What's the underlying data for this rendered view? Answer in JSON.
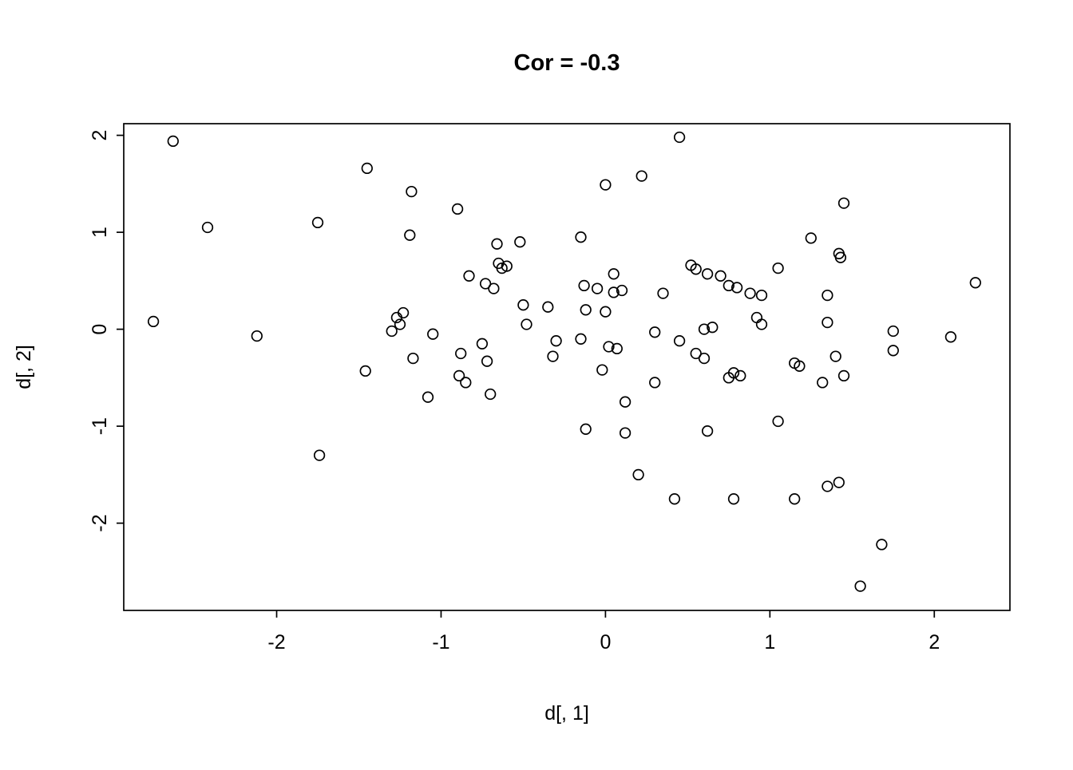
{
  "title": "Cor = -0.3",
  "colors": {
    "background": "#ffffff",
    "foreground": "#000000"
  },
  "chart_data": {
    "type": "scatter",
    "title": "Cor = -0.3",
    "xlabel": "d[, 1]",
    "ylabel": "d[, 2]",
    "xlim": [
      -2.93,
      2.46
    ],
    "ylim": [
      -2.9,
      2.12
    ],
    "x_ticks": [
      -2,
      -1,
      0,
      1,
      2
    ],
    "y_ticks": [
      -2,
      -1,
      0,
      1,
      2
    ],
    "marker": "open-circle",
    "grid": false,
    "legend": "none",
    "points": [
      [
        -2.75,
        0.08
      ],
      [
        -2.63,
        1.94
      ],
      [
        -2.42,
        1.05
      ],
      [
        -2.12,
        -0.07
      ],
      [
        -1.75,
        1.1
      ],
      [
        -1.74,
        -1.3
      ],
      [
        -1.45,
        1.66
      ],
      [
        -1.46,
        -0.43
      ],
      [
        -1.27,
        0.12
      ],
      [
        -1.25,
        0.05
      ],
      [
        -1.23,
        0.17
      ],
      [
        -1.3,
        -0.02
      ],
      [
        -1.18,
        1.42
      ],
      [
        -1.19,
        0.97
      ],
      [
        -1.17,
        -0.3
      ],
      [
        -1.08,
        -0.7
      ],
      [
        -1.05,
        -0.05
      ],
      [
        -0.9,
        1.24
      ],
      [
        -0.88,
        -0.25
      ],
      [
        -0.89,
        -0.48
      ],
      [
        -0.85,
        -0.55
      ],
      [
        -0.83,
        0.55
      ],
      [
        -0.75,
        -0.15
      ],
      [
        -0.73,
        0.47
      ],
      [
        -0.72,
        -0.33
      ],
      [
        -0.7,
        -0.67
      ],
      [
        -0.68,
        0.42
      ],
      [
        -0.66,
        0.88
      ],
      [
        -0.65,
        0.68
      ],
      [
        -0.63,
        0.63
      ],
      [
        -0.6,
        0.65
      ],
      [
        -0.52,
        0.9
      ],
      [
        -0.5,
        0.25
      ],
      [
        -0.48,
        0.05
      ],
      [
        -0.35,
        0.23
      ],
      [
        -0.32,
        -0.28
      ],
      [
        -0.3,
        -0.12
      ],
      [
        -0.15,
        0.95
      ],
      [
        -0.15,
        -0.1
      ],
      [
        -0.13,
        0.45
      ],
      [
        -0.12,
        0.2
      ],
      [
        -0.12,
        -1.03
      ],
      [
        -0.05,
        0.42
      ],
      [
        -0.02,
        -0.42
      ],
      [
        0.0,
        1.49
      ],
      [
        0.0,
        0.18
      ],
      [
        0.02,
        -0.18
      ],
      [
        0.05,
        0.57
      ],
      [
        0.05,
        0.38
      ],
      [
        0.07,
        -0.2
      ],
      [
        0.1,
        0.4
      ],
      [
        0.12,
        -0.75
      ],
      [
        0.12,
        -1.07
      ],
      [
        0.2,
        -1.5
      ],
      [
        0.22,
        1.58
      ],
      [
        0.3,
        -0.03
      ],
      [
        0.3,
        -0.55
      ],
      [
        0.35,
        0.37
      ],
      [
        0.42,
        -1.75
      ],
      [
        0.45,
        1.98
      ],
      [
        0.45,
        -0.12
      ],
      [
        0.52,
        0.66
      ],
      [
        0.55,
        0.62
      ],
      [
        0.55,
        -0.25
      ],
      [
        0.6,
        -0.3
      ],
      [
        0.6,
        0.0
      ],
      [
        0.62,
        0.57
      ],
      [
        0.62,
        -1.05
      ],
      [
        0.65,
        0.02
      ],
      [
        0.7,
        0.55
      ],
      [
        0.75,
        0.45
      ],
      [
        0.75,
        -0.5
      ],
      [
        0.78,
        -0.45
      ],
      [
        0.78,
        -1.75
      ],
      [
        0.8,
        0.43
      ],
      [
        0.82,
        -0.48
      ],
      [
        0.88,
        0.37
      ],
      [
        0.92,
        0.12
      ],
      [
        0.95,
        0.35
      ],
      [
        0.95,
        0.05
      ],
      [
        1.05,
        0.63
      ],
      [
        1.05,
        -0.95
      ],
      [
        1.15,
        -0.35
      ],
      [
        1.18,
        -0.38
      ],
      [
        1.15,
        -1.75
      ],
      [
        1.25,
        0.94
      ],
      [
        1.32,
        -0.55
      ],
      [
        1.35,
        0.35
      ],
      [
        1.35,
        0.07
      ],
      [
        1.35,
        -1.62
      ],
      [
        1.4,
        -0.28
      ],
      [
        1.42,
        0.78
      ],
      [
        1.43,
        0.74
      ],
      [
        1.42,
        -1.58
      ],
      [
        1.45,
        1.3
      ],
      [
        1.45,
        -0.48
      ],
      [
        1.55,
        -2.65
      ],
      [
        1.68,
        -2.22
      ],
      [
        1.75,
        -0.02
      ],
      [
        1.75,
        -0.22
      ],
      [
        2.1,
        -0.08
      ],
      [
        2.25,
        0.48
      ]
    ]
  }
}
